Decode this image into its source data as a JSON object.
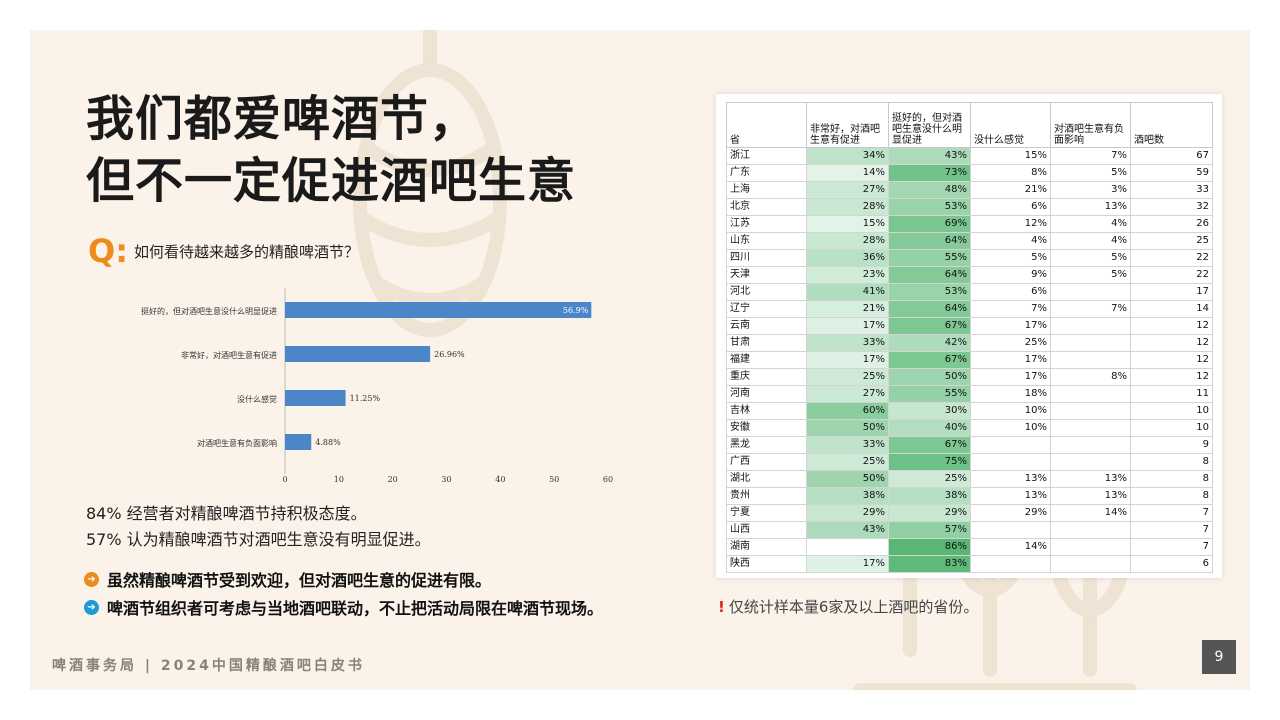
{
  "title_line1": "我们都爱啤酒节，",
  "title_line2": "但不一定促进酒吧生意",
  "question": {
    "mark": "Q:",
    "text": "如何看待越来越多的精酿啤酒节？"
  },
  "chart_data": [
    {
      "type": "bar",
      "orientation": "horizontal",
      "categories": [
        "挺好的，但对酒吧生意没什么明显促进",
        "非常好，对酒吧生意有促进",
        "没什么感觉",
        "对酒吧生意有负面影响"
      ],
      "values": [
        56.9,
        26.96,
        11.25,
        4.88
      ],
      "value_labels": [
        "56.9%",
        "26.96%",
        "11.25%",
        "4.88%"
      ],
      "xticks": [
        0,
        10,
        20,
        30,
        40,
        50,
        60
      ],
      "xlim": [
        0,
        60
      ],
      "color": "#4a86c8"
    },
    {
      "type": "table",
      "columns": [
        "省",
        "非常好，对酒吧生意有促进",
        "挺好的，但对酒吧生意没什么明显促进",
        "没什么感觉",
        "对酒吧生意有负面影响",
        "酒吧数"
      ],
      "rows": [
        [
          "浙江",
          "34%",
          "43%",
          "15%",
          "7%",
          "67"
        ],
        [
          "广东",
          "14%",
          "73%",
          "8%",
          "5%",
          "59"
        ],
        [
          "上海",
          "27%",
          "48%",
          "21%",
          "3%",
          "33"
        ],
        [
          "北京",
          "28%",
          "53%",
          "6%",
          "13%",
          "32"
        ],
        [
          "江苏",
          "15%",
          "69%",
          "12%",
          "4%",
          "26"
        ],
        [
          "山东",
          "28%",
          "64%",
          "4%",
          "4%",
          "25"
        ],
        [
          "四川",
          "36%",
          "55%",
          "5%",
          "5%",
          "22"
        ],
        [
          "天津",
          "23%",
          "64%",
          "9%",
          "5%",
          "22"
        ],
        [
          "河北",
          "41%",
          "53%",
          "6%",
          "",
          "17"
        ],
        [
          "辽宁",
          "21%",
          "64%",
          "7%",
          "7%",
          "14"
        ],
        [
          "云南",
          "17%",
          "67%",
          "17%",
          "",
          "12"
        ],
        [
          "甘肃",
          "33%",
          "42%",
          "25%",
          "",
          "12"
        ],
        [
          "福建",
          "17%",
          "67%",
          "17%",
          "",
          "12"
        ],
        [
          "重庆",
          "25%",
          "50%",
          "17%",
          "8%",
          "12"
        ],
        [
          "河南",
          "27%",
          "55%",
          "18%",
          "",
          "11"
        ],
        [
          "吉林",
          "60%",
          "30%",
          "10%",
          "",
          "10"
        ],
        [
          "安徽",
          "50%",
          "40%",
          "10%",
          "",
          "10"
        ],
        [
          "黑龙",
          "33%",
          "67%",
          "",
          "",
          "9"
        ],
        [
          "广西",
          "25%",
          "75%",
          "",
          "",
          "8"
        ],
        [
          "湖北",
          "50%",
          "25%",
          "13%",
          "13%",
          "8"
        ],
        [
          "贵州",
          "38%",
          "38%",
          "13%",
          "13%",
          "8"
        ],
        [
          "宁夏",
          "29%",
          "29%",
          "29%",
          "14%",
          "7"
        ],
        [
          "山西",
          "43%",
          "57%",
          "",
          "",
          "7"
        ],
        [
          "湖南",
          "",
          "86%",
          "14%",
          "",
          "7"
        ],
        [
          "陕西",
          "17%",
          "83%",
          "",
          "",
          "6"
        ]
      ]
    }
  ],
  "stats": [
    "84% 经营者对精酿啤酒节持积极态度。",
    "57% 认为精酿啤酒节对酒吧生意没有明显促进。"
  ],
  "bullets": [
    {
      "icon": "arrow-right-icon",
      "color": "#ef8a1e",
      "text": "虽然精酿啤酒节受到欢迎，但对酒吧生意的促进有限。"
    },
    {
      "icon": "arrow-right-icon",
      "color": "#1e9ad6",
      "text": "啤酒节组织者可考虑与当地酒吧联动，不止把活动局限在啤酒节现场。"
    }
  ],
  "note": {
    "mark": "!",
    "text": "仅统计样本量6家及以上酒吧的省份。"
  },
  "footer": "啤酒事务局 | 2024中国精酿酒吧白皮书",
  "page_number": "9"
}
